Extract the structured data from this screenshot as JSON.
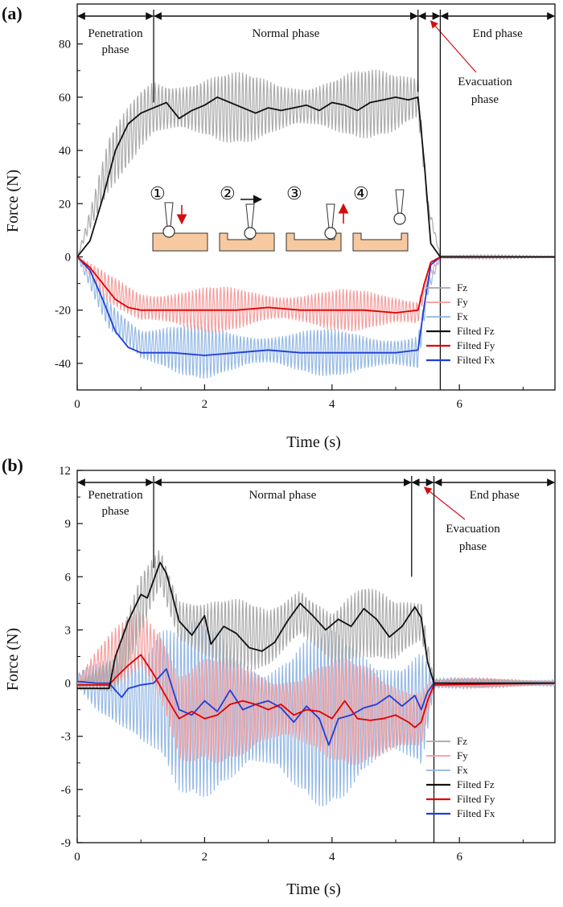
{
  "chart_data": [
    {
      "type": "line",
      "panel": "(a)",
      "xlabel": "Time (s)",
      "ylabel": "Force (N)",
      "xlim": [
        0,
        7.5
      ],
      "ylim": [
        -50,
        95
      ],
      "xticks": [
        0,
        2,
        4,
        6
      ],
      "yticks": [
        -40,
        -20,
        0,
        20,
        40,
        60,
        80
      ],
      "legend_position": "bottom-right",
      "phases": [
        {
          "label": "Penetration phase",
          "label_lines": [
            "Penetration",
            "phase"
          ],
          "x0": 0,
          "x1": 1.2
        },
        {
          "label": "Normal phase",
          "label_lines": [
            "Normal phase"
          ],
          "x0": 1.2,
          "x1": 5.35
        },
        {
          "label": "Evacuation phase",
          "label_lines": [
            "Evacuation",
            "phase"
          ],
          "x0": 5.35,
          "x1": 5.7
        },
        {
          "label": "End phase",
          "label_lines": [
            "End phase"
          ],
          "x0": 5.7,
          "x1": 7.5
        }
      ],
      "inset_steps": [
        "①",
        "②",
        "③",
        "④"
      ],
      "raw_series": [
        {
          "name": "Fz",
          "color": "#a6a6a6",
          "x": [
            0,
            0.5,
            1.0,
            1.2,
            2.0,
            3.0,
            4.0,
            5.0,
            5.35,
            5.5,
            5.7,
            7.5
          ],
          "y": [
            0,
            35,
            52,
            56,
            56,
            56,
            57,
            58,
            60,
            20,
            0,
            0
          ],
          "amplitude": [
            0,
            10,
            14,
            16,
            14,
            13,
            13,
            13,
            13,
            4,
            1,
            0.6
          ]
        },
        {
          "name": "Fy",
          "color": "#f49a9a",
          "x": [
            0,
            0.5,
            1.0,
            2.0,
            3.0,
            4.0,
            5.0,
            5.35,
            5.5,
            5.7,
            7.5
          ],
          "y": [
            0,
            -12,
            -19,
            -20,
            -19,
            -20,
            -20,
            -21,
            -8,
            0,
            0
          ],
          "amplitude": [
            0,
            6,
            9,
            9,
            8,
            8,
            8,
            8,
            3,
            0.5,
            0.4
          ]
        },
        {
          "name": "Fx",
          "color": "#8fb5e3",
          "x": [
            0,
            0.5,
            1.0,
            2.0,
            3.0,
            4.0,
            5.0,
            5.35,
            5.5,
            5.7,
            7.5
          ],
          "y": [
            0,
            -22,
            -33,
            -36,
            -35,
            -36,
            -36,
            -36,
            -12,
            0,
            0
          ],
          "amplitude": [
            0,
            8,
            10,
            10,
            9,
            9,
            9,
            9,
            3,
            0.5,
            0.4
          ]
        }
      ],
      "filtered_series": [
        {
          "name": "Filted Fz",
          "color": "#111111",
          "x": [
            0,
            0.2,
            0.4,
            0.6,
            0.8,
            1.0,
            1.2,
            1.4,
            1.6,
            1.8,
            2.0,
            2.2,
            2.4,
            2.6,
            2.8,
            3.0,
            3.2,
            3.4,
            3.6,
            3.8,
            4.0,
            4.2,
            4.4,
            4.6,
            4.8,
            5.0,
            5.2,
            5.35,
            5.45,
            5.55,
            5.7,
            6.0,
            7.5
          ],
          "y": [
            0,
            6,
            22,
            40,
            50,
            54,
            56,
            58,
            52,
            55,
            57,
            60,
            58,
            56,
            54,
            56,
            55,
            56,
            57,
            55,
            58,
            57,
            55,
            58,
            59,
            60,
            59,
            60,
            35,
            5,
            0,
            0,
            0
          ]
        },
        {
          "name": "Filted Fy",
          "color": "#e00000",
          "x": [
            0,
            0.2,
            0.4,
            0.6,
            0.8,
            1.0,
            1.5,
            2.0,
            2.5,
            3.0,
            3.5,
            4.0,
            4.5,
            5.0,
            5.35,
            5.45,
            5.55,
            5.7,
            7.5
          ],
          "y": [
            0,
            -4,
            -10,
            -16,
            -19,
            -20,
            -20,
            -20,
            -20,
            -19,
            -20,
            -20,
            -20,
            -21,
            -20,
            -10,
            -2,
            0,
            0
          ]
        },
        {
          "name": "Filted Fx",
          "color": "#1f3fd6",
          "x": [
            0,
            0.2,
            0.4,
            0.6,
            0.8,
            1.0,
            1.5,
            2.0,
            2.5,
            3.0,
            3.5,
            4.0,
            4.5,
            5.0,
            5.35,
            5.45,
            5.55,
            5.7,
            7.5
          ],
          "y": [
            0,
            -5,
            -16,
            -28,
            -34,
            -36,
            -36,
            -37,
            -36,
            -35,
            -36,
            -36,
            -36,
            -36,
            -35,
            -18,
            -3,
            0,
            0
          ]
        }
      ]
    },
    {
      "type": "line",
      "panel": "(b)",
      "xlabel": "Time (s)",
      "ylabel": "Force (N)",
      "xlim": [
        0,
        7.5
      ],
      "ylim": [
        -9,
        12
      ],
      "xticks": [
        0,
        2,
        4,
        6
      ],
      "yticks": [
        -9,
        -6,
        -3,
        0,
        3,
        6,
        9,
        12
      ],
      "legend_position": "bottom-right",
      "phases": [
        {
          "label": "Penetration phase",
          "label_lines": [
            "Penetration",
            "phase"
          ],
          "x0": 0,
          "x1": 1.2
        },
        {
          "label": "Normal phase",
          "label_lines": [
            "Normal phase"
          ],
          "x0": 1.2,
          "x1": 5.25
        },
        {
          "label": "Evacuation phase",
          "label_lines": [
            "Evacuation",
            "phase"
          ],
          "x0": 5.25,
          "x1": 5.6
        },
        {
          "label": "End phase",
          "label_lines": [
            "End phase"
          ],
          "x0": 5.6,
          "x1": 7.5
        }
      ],
      "raw_series": [
        {
          "name": "Fz",
          "color": "#a6a6a6",
          "x": [
            0,
            0.6,
            1.0,
            1.3,
            1.6,
            2.0,
            3.0,
            3.5,
            4.0,
            4.5,
            5.0,
            5.4,
            5.6,
            7.5
          ],
          "y": [
            -0.1,
            0.5,
            4.5,
            6.5,
            3.5,
            3,
            2.5,
            4,
            2.5,
            3.5,
            3,
            3.5,
            0,
            0
          ],
          "amplitude": [
            0.2,
            1,
            2.2,
            2,
            2.2,
            2,
            2,
            2.5,
            2,
            2,
            2,
            2,
            0.3,
            0.15
          ]
        },
        {
          "name": "Fy",
          "color": "#f49a9a",
          "x": [
            0,
            0.6,
            1.0,
            1.3,
            1.6,
            2.0,
            3.0,
            4.0,
            5.0,
            5.4,
            5.6,
            7.5
          ],
          "y": [
            0,
            1.5,
            2.5,
            1,
            -2,
            -1.5,
            -1.5,
            -1.5,
            -2,
            -2,
            0,
            0
          ],
          "amplitude": [
            0.2,
            2,
            3,
            3.5,
            3.5,
            3,
            3,
            3,
            3,
            3,
            0.3,
            0.25
          ]
        },
        {
          "name": "Fx",
          "color": "#8fb5e3",
          "x": [
            0,
            0.6,
            1.0,
            1.3,
            1.6,
            2.0,
            3.0,
            4.0,
            5.0,
            5.4,
            5.6,
            7.5
          ],
          "y": [
            0.2,
            -0.5,
            -1,
            -0.5,
            -1.5,
            -1.5,
            -2,
            -2,
            -1.5,
            -1.5,
            0,
            0
          ],
          "amplitude": [
            0.3,
            3,
            4.5,
            5,
            5,
            5,
            5,
            5,
            4.5,
            4.5,
            0.3,
            0.25
          ]
        }
      ],
      "filtered_series": [
        {
          "name": "Filted Fz",
          "color": "#111111",
          "x": [
            0,
            0.5,
            0.6,
            0.8,
            1.0,
            1.1,
            1.3,
            1.4,
            1.6,
            1.8,
            2.0,
            2.1,
            2.3,
            2.5,
            2.7,
            2.9,
            3.1,
            3.3,
            3.5,
            3.7,
            3.9,
            4.1,
            4.3,
            4.5,
            4.7,
            4.9,
            5.1,
            5.3,
            5.4,
            5.5,
            5.6,
            7.5
          ],
          "y": [
            -0.3,
            -0.3,
            1.5,
            3.5,
            5,
            4.8,
            6.8,
            6.2,
            3.5,
            2.7,
            3.8,
            2.2,
            3.2,
            2.8,
            2,
            1.8,
            2.3,
            3.5,
            4.5,
            3.8,
            3,
            3.6,
            3.2,
            4.2,
            3.6,
            2.6,
            3.2,
            4.3,
            3.7,
            1.2,
            0,
            0
          ]
        },
        {
          "name": "Filted Fy",
          "color": "#e00000",
          "x": [
            0,
            0.5,
            0.6,
            0.8,
            1.0,
            1.2,
            1.4,
            1.6,
            1.8,
            2.0,
            2.2,
            2.4,
            2.6,
            2.8,
            3.0,
            3.2,
            3.4,
            3.6,
            3.8,
            4.0,
            4.2,
            4.4,
            4.6,
            4.8,
            5.0,
            5.2,
            5.3,
            5.4,
            5.5,
            5.6,
            7.5
          ],
          "y": [
            -0.1,
            -0.1,
            0.3,
            1,
            1.6,
            0.5,
            -0.8,
            -2,
            -1.6,
            -2,
            -1.8,
            -1.2,
            -1,
            -1.2,
            -1.5,
            -1.2,
            -1.8,
            -1.5,
            -1.6,
            -2,
            -1,
            -2,
            -2.1,
            -2,
            -1.8,
            -2.2,
            -2.5,
            -2.2,
            -1,
            -0.1,
            0
          ]
        },
        {
          "name": "Filted Fx",
          "color": "#1f3fd6",
          "x": [
            0,
            0.3,
            0.5,
            0.7,
            0.8,
            1.0,
            1.2,
            1.4,
            1.6,
            1.8,
            2.0,
            2.2,
            2.4,
            2.6,
            2.8,
            3.0,
            3.2,
            3.4,
            3.6,
            3.8,
            3.95,
            4.1,
            4.3,
            4.5,
            4.7,
            4.9,
            5.1,
            5.3,
            5.4,
            5.5,
            5.6,
            7.5
          ],
          "y": [
            0.1,
            0,
            0,
            -0.8,
            -0.3,
            -0.1,
            0,
            0.8,
            -1.5,
            -1.8,
            -1,
            -1.6,
            -0.4,
            -1.5,
            -1.2,
            -1,
            -1.4,
            -2.2,
            -1.3,
            -2,
            -3.5,
            -2,
            -1.8,
            -1.4,
            -1.2,
            -0.7,
            -1.3,
            -0.7,
            -1.5,
            -0.5,
            0,
            0
          ]
        }
      ]
    }
  ]
}
